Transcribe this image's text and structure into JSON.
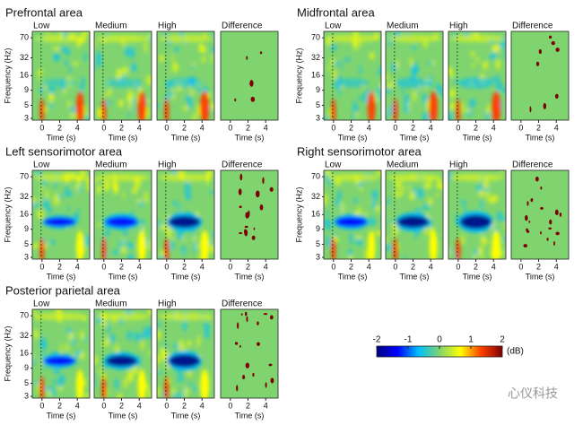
{
  "groups": [
    {
      "title": "Prefrontal area",
      "panels": [
        "Low",
        "Medium",
        "High",
        "Difference"
      ]
    },
    {
      "title": "Midfrontal area",
      "panels": [
        "Low",
        "Medium",
        "High",
        "Difference"
      ]
    },
    {
      "title": "Left sensorimotor area",
      "panels": [
        "Low",
        "Medium",
        "High",
        "Difference"
      ]
    },
    {
      "title": "Right sensorimotor area",
      "panels": [
        "Low",
        "Medium",
        "High",
        "Difference"
      ]
    },
    {
      "title": "Posterior parietal area",
      "panels": [
        "Low",
        "Medium",
        "High",
        "Difference"
      ]
    }
  ],
  "axes": {
    "y_label": "Frequency (Hz)",
    "x_label": "Time (s)",
    "ylog": true,
    "ylim": [
      2.8,
      90
    ],
    "yticks": [
      3,
      5,
      9,
      16,
      32,
      70
    ],
    "xlim": [
      -1.1,
      5.4
    ],
    "xticks": [
      0,
      2,
      4
    ]
  },
  "colorbar": {
    "ticks": [
      -2,
      -1,
      0,
      1,
      2
    ],
    "unit": "(dB)",
    "colors": [
      "#00007f",
      "#0000ff",
      "#00bfff",
      "#7fd46f",
      "#ffff00",
      "#ff3f00",
      "#7f0000"
    ]
  },
  "watermark": "心仪科技"
}
